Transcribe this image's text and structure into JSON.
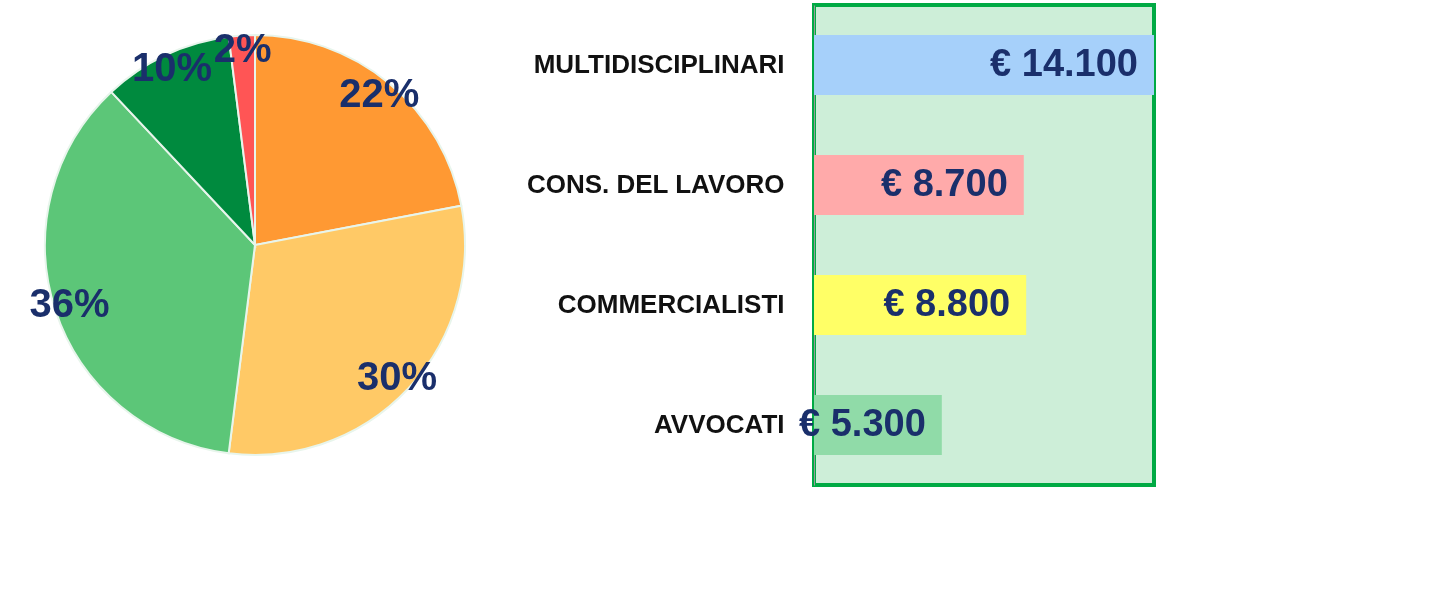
{
  "chart_data": [
    {
      "type": "pie",
      "categories": [
        null,
        null,
        null,
        null,
        null
      ],
      "values": [
        22,
        30,
        36,
        10,
        2
      ],
      "colors": [
        "#ff9933",
        "#ffc966",
        "#5cc678",
        "#008a3e",
        "#ff5555"
      ],
      "value_labels": [
        "22%",
        "30%",
        "36%",
        "10%",
        "2%"
      ]
    },
    {
      "type": "bar",
      "orientation": "horizontal",
      "categories": [
        "MULTIDISCIPLINARI",
        "CONS. DEL LAVORO",
        "COMMERCIALISTI",
        "AVVOCATI"
      ],
      "values": [
        14100,
        8700,
        8800,
        5300
      ],
      "colors": [
        "#a6d0fa",
        "#ffaaaa",
        "#ffff66",
        "#90dba8"
      ],
      "value_labels": [
        "€ 14.100",
        "€ 8.700",
        "€ 8.800",
        "€ 5.300"
      ]
    }
  ]
}
